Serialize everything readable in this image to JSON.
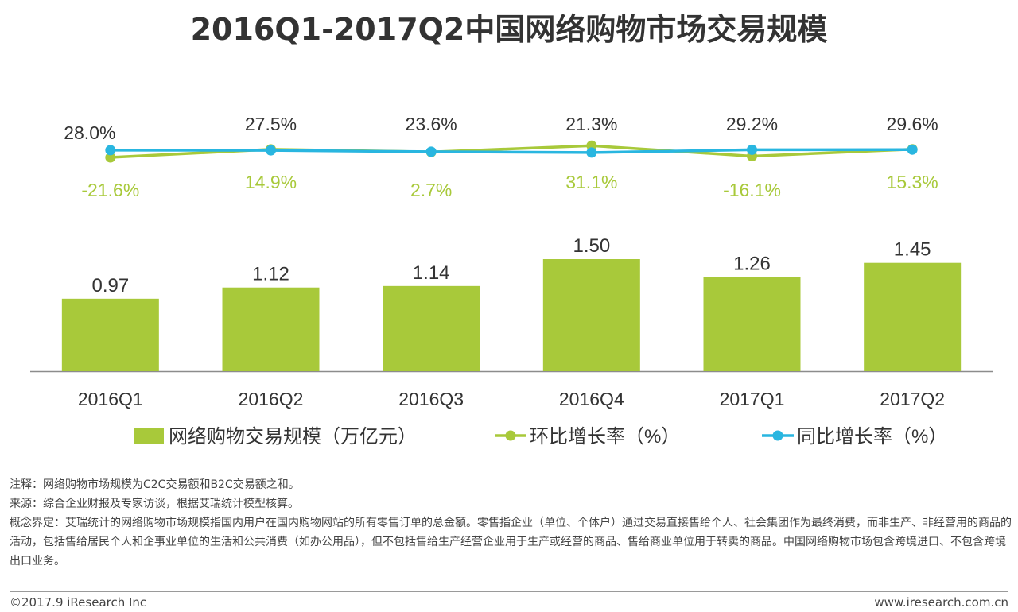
{
  "title": "2016Q1-2017Q2中国网络购物市场交易规模",
  "chart_data": {
    "type": "bar+line",
    "title": "2016Q1-2017Q2中国网络购物市场交易规模",
    "categories": [
      "2016Q1",
      "2016Q2",
      "2016Q3",
      "2016Q4",
      "2017Q1",
      "2017Q2"
    ],
    "bars": {
      "name": "网络购物交易规模（万亿元）",
      "values": [
        0.97,
        1.12,
        1.14,
        1.5,
        1.26,
        1.45
      ],
      "labels": [
        "0.97",
        "1.12",
        "1.14",
        "1.50",
        "1.26",
        "1.45"
      ],
      "color": "#a8c93a"
    },
    "lines": [
      {
        "name": "环比增长率（%）",
        "values": [
          -21.6,
          14.9,
          2.7,
          31.1,
          -16.1,
          15.3
        ],
        "labels": [
          "-21.6%",
          "14.9%",
          "2.7%",
          "31.1%",
          "-16.1%",
          "15.3%"
        ],
        "label_position": "below",
        "color": "#a8c93a"
      },
      {
        "name": "同比增长率（%）",
        "values": [
          28.0,
          27.5,
          23.6,
          21.3,
          29.2,
          29.6
        ],
        "labels": [
          "28.0%",
          "27.5%",
          "23.6%",
          "21.3%",
          "29.2%",
          "29.6%"
        ],
        "label_position": "above",
        "color": "#29b6e0"
      }
    ],
    "legend": [
      {
        "label": "网络购物交易规模（万亿元）",
        "kind": "bar",
        "color": "#a8c93a"
      },
      {
        "label": "环比增长率（%）",
        "kind": "line",
        "color": "#a8c93a"
      },
      {
        "label": "同比增长率（%）",
        "kind": "line",
        "color": "#29b6e0"
      }
    ],
    "legend_position": "bottom",
    "grid": false
  },
  "notes": {
    "note": "注释：网络购物市场规模为C2C交易额和B2C交易额之和。",
    "source": "来源：综合企业财报及专家访谈，根据艾瑞统计模型核算。",
    "definition": "概念界定：艾瑞统计的网络购物市场规模指国内用户在国内购物网站的所有零售订单的总金额。零售指企业（单位、个体户）通过交易直接售给个人、社会集团作为最终消费，而非生产、非经营用的商品的活动，包括售给居民个人和企事业单位的生活和公共消费（如办公用品），但不包括售给生产经营企业用于生产或经营的商品、售给商业单位用于转卖的商品。中国网络购物市场包含跨境进口、不包含跨境出口业务。"
  },
  "footer": {
    "copyright": "©2017.9 iResearch Inc",
    "website": "www.iresearch.com.cn"
  }
}
